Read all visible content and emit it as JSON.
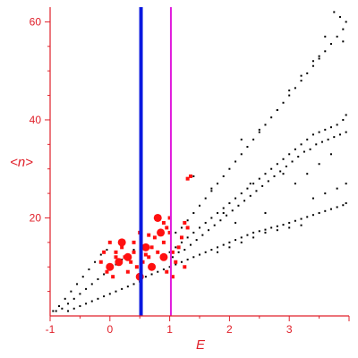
{
  "chart_data": {
    "type": "scatter",
    "title": "",
    "xlabel": "E",
    "ylabel": "<n>",
    "xlim": [
      -1,
      4.0
    ],
    "ylim": [
      0,
      63
    ],
    "xticks": [
      -1,
      0,
      1,
      2,
      3
    ],
    "xtick_labels": [
      "-1",
      "0",
      "1",
      "2",
      "3"
    ],
    "yticks": [
      20,
      40,
      60
    ],
    "ytick_labels": [
      "20",
      "40",
      "60"
    ],
    "grid": false,
    "legend": "none",
    "colors": {
      "axes": "#e0202a",
      "tick_labels": "#e0202a",
      "black_points": "#000000",
      "red_points": "#ff1010",
      "vline_blue": "#0a18e0",
      "vline_magenta": "#e01adc"
    },
    "vertical_lines": [
      {
        "x": 0.52,
        "color": "#0a18e0"
      },
      {
        "x": 1.02,
        "color": "#e01adc"
      }
    ],
    "series": [
      {
        "marker": "small-black-dot",
        "points": [
          [
            -0.95,
            1
          ],
          [
            -0.85,
            2
          ],
          [
            -0.75,
            3.5
          ],
          [
            -0.65,
            5
          ],
          [
            -0.55,
            6.5
          ],
          [
            -0.45,
            8
          ],
          [
            -0.35,
            9.5
          ],
          [
            -0.25,
            11
          ],
          [
            -0.15,
            12.5
          ],
          [
            -0.05,
            13.5
          ],
          [
            -0.9,
            1
          ],
          [
            -0.8,
            1.5
          ],
          [
            -0.7,
            2.5
          ],
          [
            -0.6,
            3.5
          ],
          [
            -0.5,
            4.5
          ],
          [
            -0.4,
            5.5
          ],
          [
            -0.3,
            6.5
          ],
          [
            -0.2,
            7.5
          ],
          [
            -0.1,
            8.5
          ],
          [
            0.0,
            9.5
          ],
          [
            0.1,
            10.5
          ],
          [
            0.2,
            11.5
          ],
          [
            0.3,
            12.5
          ],
          [
            0.4,
            13.5
          ],
          [
            -0.7,
            1
          ],
          [
            -0.6,
            1.5
          ],
          [
            -0.5,
            2
          ],
          [
            -0.4,
            2.5
          ],
          [
            -0.3,
            3
          ],
          [
            -0.2,
            3.5
          ],
          [
            -0.1,
            4
          ],
          [
            0.0,
            4.5
          ],
          [
            0.1,
            5
          ],
          [
            0.2,
            5.5
          ],
          [
            0.3,
            6
          ],
          [
            0.4,
            6.5
          ],
          [
            0.5,
            7
          ],
          [
            0.6,
            8
          ],
          [
            0.7,
            8.5
          ],
          [
            0.8,
            9
          ],
          [
            0.9,
            9.5
          ],
          [
            1.0,
            10
          ],
          [
            1.1,
            10.5
          ],
          [
            1.2,
            11
          ],
          [
            1.3,
            11.5
          ],
          [
            1.4,
            12
          ],
          [
            1.5,
            12.5
          ],
          [
            1.6,
            13
          ],
          [
            1.7,
            13.5
          ],
          [
            1.8,
            14
          ],
          [
            1.9,
            14.5
          ],
          [
            2.0,
            15
          ],
          [
            2.1,
            15.5
          ],
          [
            2.2,
            16
          ],
          [
            2.3,
            16.5
          ],
          [
            2.4,
            17
          ],
          [
            2.5,
            17.3
          ],
          [
            2.6,
            17.6
          ],
          [
            2.7,
            18
          ],
          [
            2.8,
            18.3
          ],
          [
            2.9,
            18.6
          ],
          [
            3.0,
            19
          ],
          [
            3.1,
            19.4
          ],
          [
            3.2,
            19.8
          ],
          [
            3.3,
            20.2
          ],
          [
            3.4,
            20.6
          ],
          [
            3.5,
            21
          ],
          [
            3.6,
            21.4
          ],
          [
            3.7,
            21.8
          ],
          [
            3.8,
            22.2
          ],
          [
            3.9,
            22.6
          ],
          [
            3.95,
            23
          ],
          [
            1.0,
            13
          ],
          [
            1.1,
            14
          ],
          [
            1.2,
            15
          ],
          [
            1.3,
            16
          ],
          [
            1.4,
            17
          ],
          [
            1.5,
            18
          ],
          [
            1.6,
            19
          ],
          [
            1.7,
            20
          ],
          [
            1.8,
            21
          ],
          [
            1.9,
            22
          ],
          [
            2.0,
            23
          ],
          [
            2.1,
            24
          ],
          [
            2.2,
            25
          ],
          [
            2.3,
            26
          ],
          [
            2.4,
            27
          ],
          [
            2.5,
            28
          ],
          [
            2.6,
            29
          ],
          [
            2.7,
            30
          ],
          [
            2.8,
            31
          ],
          [
            2.9,
            32
          ],
          [
            3.0,
            33
          ],
          [
            3.1,
            34
          ],
          [
            3.2,
            35
          ],
          [
            3.3,
            36
          ],
          [
            3.4,
            37
          ],
          [
            3.5,
            37.5
          ],
          [
            3.6,
            38
          ],
          [
            3.7,
            38.5
          ],
          [
            3.8,
            39
          ],
          [
            3.9,
            40
          ],
          [
            3.95,
            41
          ],
          [
            1.05,
            12
          ],
          [
            1.15,
            13
          ],
          [
            1.25,
            13.5
          ],
          [
            1.35,
            14.5
          ],
          [
            1.45,
            15.5
          ],
          [
            1.55,
            16.5
          ],
          [
            1.65,
            17.5
          ],
          [
            1.75,
            18.5
          ],
          [
            1.85,
            19.5
          ],
          [
            1.95,
            20.5
          ],
          [
            2.05,
            21.5
          ],
          [
            2.15,
            22.5
          ],
          [
            2.25,
            23.5
          ],
          [
            2.35,
            24.5
          ],
          [
            2.45,
            25.5
          ],
          [
            2.55,
            26.5
          ],
          [
            2.65,
            27.5
          ],
          [
            2.75,
            28.5
          ],
          [
            2.85,
            29.5
          ],
          [
            2.95,
            30.5
          ],
          [
            3.05,
            31.5
          ],
          [
            3.15,
            32.5
          ],
          [
            3.25,
            33.5
          ],
          [
            3.35,
            34
          ],
          [
            3.45,
            35
          ],
          [
            3.55,
            35.5
          ],
          [
            3.65,
            36
          ],
          [
            3.75,
            36.5
          ],
          [
            3.85,
            37
          ],
          [
            3.95,
            37.5
          ],
          [
            1.1,
            17
          ],
          [
            1.2,
            18
          ],
          [
            1.3,
            19.5
          ],
          [
            1.4,
            21
          ],
          [
            1.5,
            22.5
          ],
          [
            1.6,
            24
          ],
          [
            1.7,
            25.5
          ],
          [
            1.8,
            27
          ],
          [
            1.9,
            28.5
          ],
          [
            2.0,
            30
          ],
          [
            2.1,
            31.5
          ],
          [
            2.2,
            33
          ],
          [
            2.3,
            34.5
          ],
          [
            2.4,
            36
          ],
          [
            2.5,
            37.5
          ],
          [
            2.6,
            39
          ],
          [
            2.7,
            40.5
          ],
          [
            2.8,
            42
          ],
          [
            2.9,
            43.5
          ],
          [
            3.0,
            45
          ],
          [
            3.1,
            46.5
          ],
          [
            3.2,
            48
          ],
          [
            3.3,
            49.5
          ],
          [
            3.4,
            51
          ],
          [
            3.5,
            52.5
          ],
          [
            3.6,
            54
          ],
          [
            3.7,
            55.5
          ],
          [
            3.8,
            57
          ],
          [
            3.9,
            58.5
          ],
          [
            3.95,
            60
          ],
          [
            1.8,
            13
          ],
          [
            2.0,
            14
          ],
          [
            2.2,
            15
          ],
          [
            2.4,
            16
          ],
          [
            2.6,
            17
          ],
          [
            2.8,
            17.5
          ],
          [
            3.0,
            18
          ],
          [
            3.2,
            18.5
          ],
          [
            3.4,
            24
          ],
          [
            3.6,
            25
          ],
          [
            3.8,
            26
          ],
          [
            3.95,
            27
          ],
          [
            2.2,
            36
          ],
          [
            2.5,
            38
          ],
          [
            2.8,
            42
          ],
          [
            3.0,
            46
          ],
          [
            3.2,
            49
          ],
          [
            3.4,
            52
          ],
          [
            3.5,
            53
          ],
          [
            3.6,
            57
          ],
          [
            3.75,
            62
          ],
          [
            3.85,
            61
          ],
          [
            3.55,
            64
          ],
          [
            3.9,
            56
          ],
          [
            1.3,
            28
          ],
          [
            1.4,
            28.5
          ],
          [
            1.7,
            26
          ],
          [
            1.9,
            21
          ],
          [
            2.1,
            19
          ],
          [
            2.35,
            27
          ],
          [
            2.6,
            21
          ],
          [
            2.9,
            29
          ],
          [
            3.1,
            27
          ],
          [
            3.3,
            29
          ],
          [
            3.5,
            31
          ],
          [
            3.7,
            33
          ]
        ]
      },
      {
        "marker": "large-red-dot",
        "points": [
          [
            0.2,
            15
          ],
          [
            0.6,
            14
          ],
          [
            0.8,
            20
          ],
          [
            0.85,
            17
          ],
          [
            0.3,
            12
          ],
          [
            0.0,
            10
          ],
          [
            0.5,
            8
          ],
          [
            0.9,
            12
          ],
          [
            0.15,
            11
          ],
          [
            0.7,
            10
          ]
        ]
      },
      {
        "marker": "small-red-square",
        "points": [
          [
            -0.1,
            13
          ],
          [
            0.0,
            15
          ],
          [
            0.1,
            13
          ],
          [
            0.25,
            12
          ],
          [
            0.35,
            11
          ],
          [
            0.4,
            13
          ],
          [
            0.45,
            10
          ],
          [
            0.55,
            11
          ],
          [
            0.65,
            12
          ],
          [
            0.7,
            14
          ],
          [
            0.75,
            16
          ],
          [
            0.9,
            15
          ],
          [
            0.95,
            18
          ],
          [
            1.0,
            17
          ],
          [
            1.05,
            13
          ],
          [
            1.1,
            11
          ],
          [
            1.15,
            14
          ],
          [
            1.2,
            16
          ],
          [
            1.25,
            19
          ],
          [
            1.3,
            18
          ],
          [
            -0.05,
            9
          ],
          [
            0.05,
            8
          ],
          [
            0.3,
            9
          ],
          [
            0.6,
            12.5
          ],
          [
            0.8,
            13
          ],
          [
            0.95,
            9
          ],
          [
            1.05,
            8
          ],
          [
            1.25,
            10
          ],
          [
            0.4,
            15
          ],
          [
            0.2,
            14
          ],
          [
            0.1,
            12
          ],
          [
            -0.15,
            11
          ],
          [
            1.3,
            28
          ],
          [
            1.35,
            28.5
          ],
          [
            1.0,
            20
          ],
          [
            0.9,
            19
          ],
          [
            0.65,
            16.5
          ],
          [
            0.5,
            17
          ]
        ]
      }
    ]
  }
}
